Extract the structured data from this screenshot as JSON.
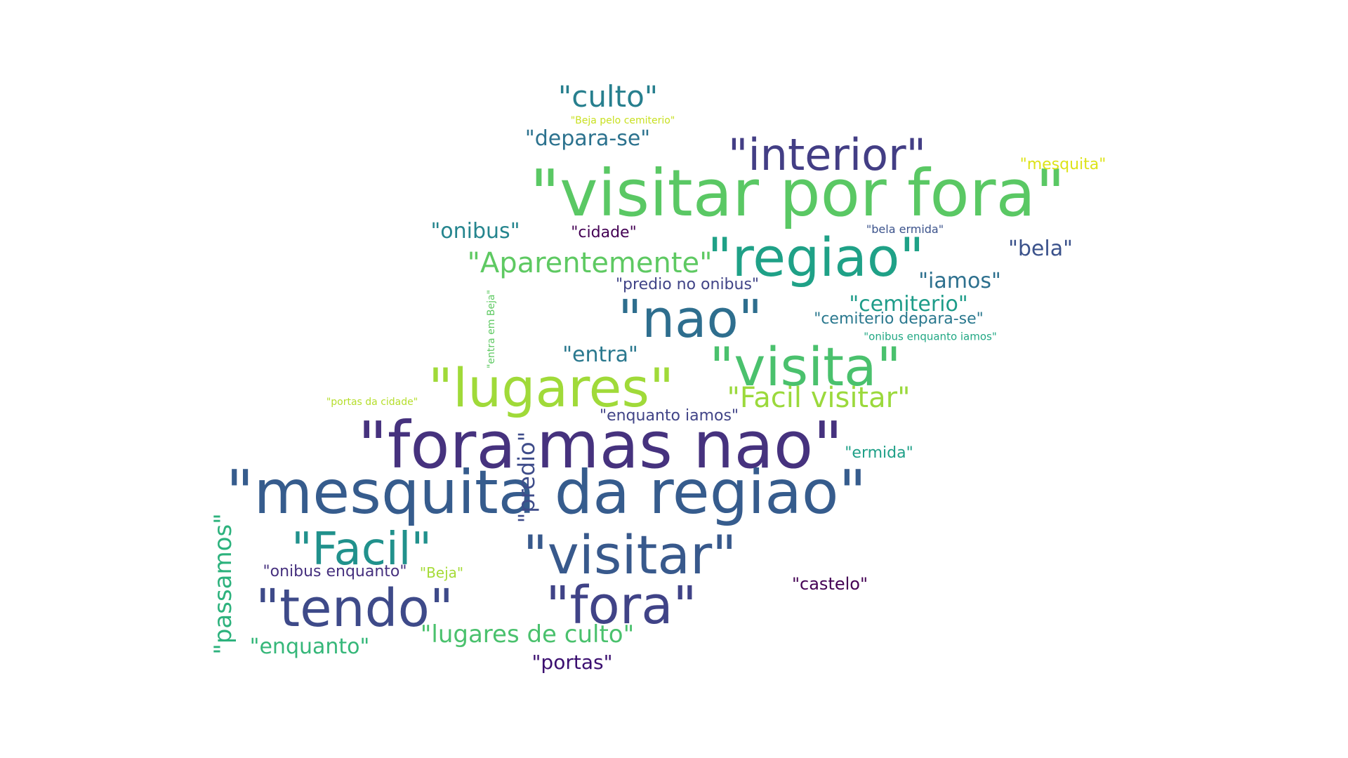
{
  "words": [
    {
      "text": "\"visitar por fora\"",
      "color": "#5ac864"
    },
    {
      "text": "\"fora mas nao\"",
      "color": "#46327e"
    },
    {
      "text": "\"mesquita da regiao\"",
      "color": "#365c8d"
    },
    {
      "text": "\"regiao\"",
      "color": "#1fa187"
    },
    {
      "text": "\"visita\"",
      "color": "#4ac16d"
    },
    {
      "text": "\"lugares\"",
      "color": "#a0da39"
    },
    {
      "text": "\"visitar\"",
      "color": "#38598c"
    },
    {
      "text": "\"tendo\"",
      "color": "#3e4a89"
    },
    {
      "text": "\"fora\"",
      "color": "#404387"
    },
    {
      "text": "\"nao\"",
      "color": "#2e6e8e"
    },
    {
      "text": "\"interior\"",
      "color": "#433e85"
    },
    {
      "text": "\"Facil\"",
      "color": "#21918c"
    },
    {
      "text": "\"culto\"",
      "color": "#277f8e"
    },
    {
      "text": "\"Aparentemente\"",
      "color": "#5ec962"
    },
    {
      "text": "\"Facil visitar\"",
      "color": "#9bd93c"
    },
    {
      "text": "\"lugares de culto\"",
      "color": "#4ac16d"
    },
    {
      "text": "\"entra\"",
      "color": "#2a788e"
    },
    {
      "text": "\"depara-se\"",
      "color": "#2c728e"
    },
    {
      "text": "\"cemiterio\"",
      "color": "#1e9c89"
    },
    {
      "text": "\"onibus\"",
      "color": "#25858e"
    },
    {
      "text": "\"iamos\"",
      "color": "#2d708e"
    },
    {
      "text": "\"bela\"",
      "color": "#3b528b"
    },
    {
      "text": "\"enquanto\"",
      "color": "#35b779"
    },
    {
      "text": "\"portas\"",
      "color": "#3b0f70"
    },
    {
      "text": "\"predio no onibus\"",
      "color": "#414487"
    },
    {
      "text": "\"cemiterio depara-se\"",
      "color": "#2a788e"
    },
    {
      "text": "\"enquanto iamos\"",
      "color": "#414487"
    },
    {
      "text": "\"onibus enquanto\"",
      "color": "#46307e"
    },
    {
      "text": "\"castelo\"",
      "color": "#440154"
    },
    {
      "text": "\"ermida\"",
      "color": "#1fa088"
    },
    {
      "text": "\"mesquita\"",
      "color": "#dde318"
    },
    {
      "text": "\"cidade\"",
      "color": "#440154"
    },
    {
      "text": "\"Beja\"",
      "color": "#a5db36"
    },
    {
      "text": "\"bela ermida\"",
      "color": "#3b528b"
    },
    {
      "text": "\"onibus enquanto iamos\"",
      "color": "#22a884"
    },
    {
      "text": "\"Beja pelo cemiterio\"",
      "color": "#c8e020"
    },
    {
      "text": "\"portas da cidade\"",
      "color": "#b5de2b"
    },
    {
      "text": "\"passamos\"",
      "color": "#2db27d",
      "vertical": true
    },
    {
      "text": "\"predio\"",
      "color": "#3e4c8a",
      "vertical": true
    },
    {
      "text": "\"entra em Beja\"",
      "color": "#5ec962",
      "vertical": true
    }
  ]
}
